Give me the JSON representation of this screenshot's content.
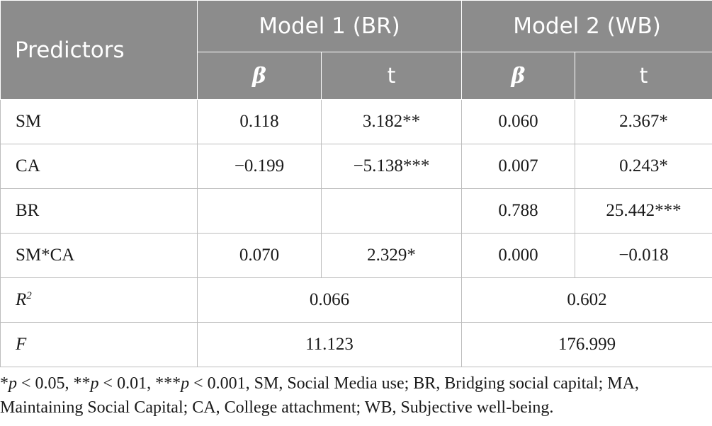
{
  "table": {
    "header": {
      "predictors": "Predictors",
      "model1": "Model 1 (BR)",
      "model2": "Model 2 (WB)",
      "beta": "β",
      "t": "t"
    },
    "rows": [
      {
        "label": "SM",
        "m1_beta": "0.118",
        "m1_t": "3.182**",
        "m2_beta": "0.060",
        "m2_t": "2.367*"
      },
      {
        "label": "CA",
        "m1_beta": "−0.199",
        "m1_t": "−5.138***",
        "m2_beta": "0.007",
        "m2_t": "0.243*"
      },
      {
        "label": "BR",
        "m1_beta": "",
        "m1_t": "",
        "m2_beta": "0.788",
        "m2_t": "25.442***"
      },
      {
        "label": "SM*CA",
        "m1_beta": "0.070",
        "m1_t": "2.329*",
        "m2_beta": "0.000",
        "m2_t": "−0.018"
      }
    ],
    "r2": {
      "label": "R",
      "sup": "2",
      "model1": "0.066",
      "model2": "0.602"
    },
    "f": {
      "label": "F",
      "model1": "11.123",
      "model2": "176.999"
    }
  },
  "note": {
    "s1": "*",
    "p1": "p",
    "s2": " < 0.05, **",
    "p2": "p",
    "s3": " < 0.01, ***",
    "p3": "p",
    "s4": " < 0.001, SM, Social Media use; BR, Bridging social capital; MA, Maintaining Social Capital; CA, College attachment; WB, Subjective well-being."
  }
}
